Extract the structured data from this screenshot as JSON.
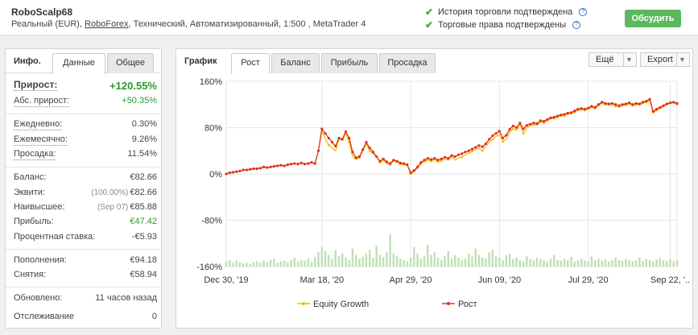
{
  "account": {
    "name": "RoboScalp68",
    "meta_prefix": "Реальный (EUR), ",
    "broker": "RoboForex",
    "meta_suffix": ", Технический, Автоматизированный, 1:500 , MetaTrader 4"
  },
  "verification": {
    "history": "История торговли подтверждена",
    "rights": "Торговые права подтверждены",
    "help_glyph": "?"
  },
  "discuss_button": "Обсудить",
  "info": {
    "title": "Инфо.",
    "tabs": [
      "Данные",
      "Общее"
    ],
    "growth_label": "Прирост:",
    "growth_value": "+120.55%",
    "abs_label": "Абс. прирост:",
    "abs_value": "+50.35%",
    "daily_label": "Ежедневно:",
    "daily_value": "0.30%",
    "monthly_label": "Ежемесячно:",
    "monthly_value": "9.26%",
    "drawdown_label": "Просадка:",
    "drawdown_value": "11.54%",
    "balance_label": "Баланс:",
    "balance_value": "€82.66",
    "equity_label": "Эквити:",
    "equity_pct": "(100.00%)",
    "equity_value": "€82.66",
    "highest_label": "Наивысшее:",
    "highest_date": "(Sep 07)",
    "highest_value": "€85.88",
    "profit_label": "Прибыль:",
    "profit_value": "€47.42",
    "interest_label": "Процентная ставка:",
    "interest_value": "-€5.93",
    "deposits_label": "Пополнения:",
    "deposits_value": "€94.18",
    "withdrawals_label": "Снятия:",
    "withdrawals_value": "€58.94",
    "updated_label": "Обновлено:",
    "updated_value": "11 часов назад",
    "tracking_label": "Отслеживание",
    "tracking_value": "0"
  },
  "chart_panel": {
    "title": "График",
    "tabs": [
      "Рост",
      "Баланс",
      "Прибыль",
      "Просадка"
    ],
    "more_label": "Ещё",
    "export_label": "Export",
    "caret": "▼"
  },
  "chart_data": {
    "type": "line",
    "y_ticks": [
      "160%",
      "80%",
      "0%",
      "-80%",
      "-160%"
    ],
    "y_tick_values": [
      160,
      80,
      0,
      -80,
      -160
    ],
    "ylim": [
      -160,
      160
    ],
    "x_tick_labels": [
      "Dec 30, '19",
      "Mar 18, '20",
      "Apr 29, '20",
      "Jun 09, '20",
      "Jul 29, '20",
      "Sep 22, '.."
    ],
    "x_tick_index": [
      0,
      28,
      54,
      80,
      106,
      130
    ],
    "grid": true,
    "legend_position": "bottom",
    "series": [
      {
        "name": "Equity Growth",
        "color": "#f5b800",
        "values": [
          0,
          2,
          3,
          4,
          5,
          7,
          7,
          8,
          9,
          9,
          10,
          12,
          11,
          12,
          13,
          14,
          15,
          14,
          16,
          17,
          18,
          17,
          19,
          17,
          18,
          20,
          18,
          40,
          75,
          60,
          50,
          45,
          40,
          60,
          58,
          70,
          55,
          30,
          25,
          28,
          40,
          52,
          40,
          35,
          30,
          20,
          24,
          18,
          16,
          22,
          20,
          17,
          16,
          15,
          0,
          4,
          10,
          18,
          21,
          24,
          22,
          25,
          20,
          23,
          26,
          24,
          30,
          24,
          28,
          29,
          33,
          36,
          39,
          42,
          45,
          40,
          48,
          55,
          60,
          65,
          68,
          56,
          60,
          72,
          78,
          75,
          86,
          70,
          80,
          83,
          85,
          84,
          90,
          88,
          92,
          95,
          96,
          98,
          100,
          101,
          103,
          104,
          107,
          110,
          111,
          110,
          112,
          115,
          113,
          118,
          122,
          120,
          119,
          120,
          117,
          115,
          118,
          119,
          121,
          117,
          120,
          119,
          122,
          124,
          127,
          105,
          110,
          113,
          116,
          120,
          122,
          123,
          120
        ]
      },
      {
        "name": "Рост",
        "color": "#e0331c",
        "values": [
          0,
          2,
          3,
          4,
          5,
          7,
          7,
          8,
          9,
          9,
          10,
          12,
          11,
          12,
          13,
          14,
          15,
          14,
          16,
          17,
          18,
          17,
          19,
          17,
          18,
          20,
          18,
          40,
          78,
          70,
          62,
          55,
          48,
          62,
          60,
          73,
          62,
          38,
          28,
          30,
          42,
          55,
          45,
          38,
          30,
          22,
          26,
          21,
          18,
          24,
          22,
          19,
          18,
          16,
          2,
          6,
          12,
          20,
          24,
          27,
          25,
          27,
          24,
          26,
          29,
          27,
          32,
          30,
          33,
          35,
          38,
          40,
          43,
          46,
          49,
          47,
          52,
          60,
          66,
          70,
          74,
          62,
          67,
          77,
          83,
          80,
          88,
          78,
          84,
          86,
          88,
          87,
          92,
          91,
          94,
          97,
          98,
          100,
          102,
          103,
          105,
          106,
          109,
          112,
          113,
          112,
          114,
          117,
          115,
          120,
          124,
          122,
          121,
          122,
          120,
          118,
          120,
          121,
          123,
          120,
          122,
          121,
          124,
          126,
          129,
          108,
          112,
          115,
          118,
          121,
          123,
          124,
          122
        ]
      }
    ],
    "volume": [
      8,
      10,
      6,
      9,
      7,
      5,
      6,
      4,
      7,
      8,
      6,
      9,
      7,
      10,
      12,
      6,
      8,
      9,
      7,
      11,
      14,
      8,
      10,
      9,
      12,
      7,
      15,
      22,
      30,
      24,
      18,
      12,
      25,
      16,
      20,
      14,
      10,
      28,
      18,
      12,
      15,
      20,
      26,
      14,
      32,
      18,
      15,
      22,
      50,
      20,
      16,
      12,
      10,
      8,
      14,
      30,
      20,
      12,
      16,
      34,
      18,
      22,
      14,
      10,
      16,
      24,
      12,
      18,
      14,
      10,
      12,
      20,
      16,
      28,
      18,
      14,
      12,
      22,
      26,
      16,
      14,
      10,
      18,
      20,
      12,
      14,
      10,
      8,
      16,
      12,
      10,
      14,
      12,
      10,
      8,
      12,
      18,
      10,
      9,
      12,
      10,
      15,
      8,
      10,
      12,
      9,
      8,
      16,
      10,
      12,
      9,
      11,
      8,
      10,
      14,
      10,
      9,
      12,
      10,
      8,
      10,
      14,
      9,
      12,
      10,
      8,
      11,
      13,
      10,
      9,
      12,
      8,
      10
    ]
  }
}
